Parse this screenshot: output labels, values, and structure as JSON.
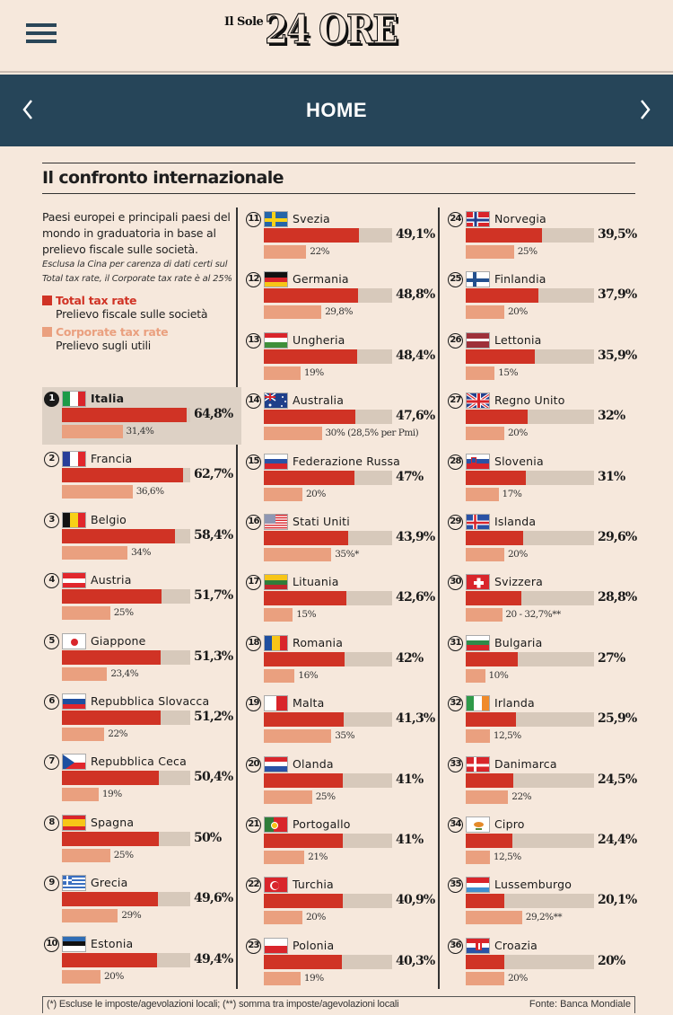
{
  "header": {
    "logo_small": "Il Sole",
    "logo_big": "24 ORE",
    "menu_icon": "hamburger-menu-icon"
  },
  "navbar": {
    "title": "HOME",
    "prev_icon": "chevron-left-icon",
    "next_icon": "chevron-right-icon"
  },
  "colors": {
    "total": "#d03325",
    "corporate": "#eaa07f",
    "track": "#d7c9bb",
    "navbar": "#264559",
    "background": "#f6e8dc"
  },
  "intro": {
    "lead": "Paesi europei e principali paesi del mondo in graduatoria in base al prelievo fiscale sulle società.",
    "note": "Esclusa la Cina per carenza di dati certi sul Total tax rate, il Corporate tax rate è al 25%"
  },
  "legend": {
    "total_label": "Total tax rate",
    "total_sub": "Prelievo fiscale sulle società",
    "corporate_label": "Corporate tax rate",
    "corporate_sub": "Prelievo sugli utili"
  },
  "footer": {
    "note": "(*) Escluse le imposte/agevolazioni locali; (**) somma tra imposte/agevolazioni locali",
    "source": "Fonte: Banca Mondiale"
  },
  "chart_data": {
    "type": "bar",
    "title": "Il confronto internazionale",
    "xlabel": "",
    "ylabel": "",
    "xlim": [
      0,
      66.5
    ],
    "legend": "left",
    "grid": false,
    "series_names": [
      "Total tax rate",
      "Corporate tax rate"
    ],
    "rows": [
      {
        "rank": "1",
        "country": "Italia",
        "flag": "it",
        "total": 64.8,
        "total_label": "64,8%",
        "corp": 31.4,
        "corp_label": "31,4%",
        "highlight": true
      },
      {
        "rank": "2",
        "country": "Francia",
        "flag": "fr",
        "total": 62.7,
        "total_label": "62,7%",
        "corp": 36.6,
        "corp_label": "36,6%"
      },
      {
        "rank": "3",
        "country": "Belgio",
        "flag": "be",
        "total": 58.4,
        "total_label": "58,4%",
        "corp": 34,
        "corp_label": "34%"
      },
      {
        "rank": "4",
        "country": "Austria",
        "flag": "at",
        "total": 51.7,
        "total_label": "51,7%",
        "corp": 25,
        "corp_label": "25%"
      },
      {
        "rank": "5",
        "country": "Giappone",
        "flag": "jp",
        "total": 51.3,
        "total_label": "51,3%",
        "corp": 23.4,
        "corp_label": "23,4%"
      },
      {
        "rank": "6",
        "country": "Repubblica Slovacca",
        "flag": "sk",
        "total": 51.2,
        "total_label": "51,2%",
        "corp": 22,
        "corp_label": "22%"
      },
      {
        "rank": "7",
        "country": "Repubblica Ceca",
        "flag": "cz",
        "total": 50.4,
        "total_label": "50,4%",
        "corp": 19,
        "corp_label": "19%"
      },
      {
        "rank": "8",
        "country": "Spagna",
        "flag": "es",
        "total": 50,
        "total_label": "50%",
        "corp": 25,
        "corp_label": "25%"
      },
      {
        "rank": "9",
        "country": "Grecia",
        "flag": "gr",
        "total": 49.6,
        "total_label": "49,6%",
        "corp": 29,
        "corp_label": "29%"
      },
      {
        "rank": "10",
        "country": "Estonia",
        "flag": "ee",
        "total": 49.4,
        "total_label": "49,4%",
        "corp": 20,
        "corp_label": "20%"
      },
      {
        "rank": "11",
        "country": "Svezia",
        "flag": "se",
        "total": 49.1,
        "total_label": "49,1%",
        "corp": 22,
        "corp_label": "22%"
      },
      {
        "rank": "12",
        "country": "Germania",
        "flag": "de",
        "total": 48.8,
        "total_label": "48,8%",
        "corp": 29.8,
        "corp_label": "29,8%"
      },
      {
        "rank": "13",
        "country": "Ungheria",
        "flag": "hu",
        "total": 48.4,
        "total_label": "48,4%",
        "corp": 19,
        "corp_label": "19%"
      },
      {
        "rank": "14",
        "country": "Australia",
        "flag": "au",
        "total": 47.6,
        "total_label": "47,6%",
        "corp": 30,
        "corp_label": "30% (28,5% per Pmi)"
      },
      {
        "rank": "15",
        "country": "Federazione Russa",
        "flag": "ru",
        "total": 47,
        "total_label": "47%",
        "corp": 20,
        "corp_label": "20%"
      },
      {
        "rank": "16",
        "country": "Stati Uniti",
        "flag": "us",
        "total": 43.9,
        "total_label": "43,9%",
        "corp": 35,
        "corp_label": "35%*"
      },
      {
        "rank": "17",
        "country": "Lituania",
        "flag": "lt",
        "total": 42.6,
        "total_label": "42,6%",
        "corp": 15,
        "corp_label": "15%"
      },
      {
        "rank": "18",
        "country": "Romania",
        "flag": "ro",
        "total": 42,
        "total_label": "42%",
        "corp": 16,
        "corp_label": "16%"
      },
      {
        "rank": "19",
        "country": "Malta",
        "flag": "mt",
        "total": 41.3,
        "total_label": "41,3%",
        "corp": 35,
        "corp_label": "35%"
      },
      {
        "rank": "20",
        "country": "Olanda",
        "flag": "nl",
        "total": 41,
        "total_label": "41%",
        "corp": 25,
        "corp_label": "25%"
      },
      {
        "rank": "21",
        "country": "Portogallo",
        "flag": "pt",
        "total": 41,
        "total_label": "41%",
        "corp": 21,
        "corp_label": "21%"
      },
      {
        "rank": "22",
        "country": "Turchia",
        "flag": "tr",
        "total": 40.9,
        "total_label": "40,9%",
        "corp": 20,
        "corp_label": "20%"
      },
      {
        "rank": "23",
        "country": "Polonia",
        "flag": "pl",
        "total": 40.3,
        "total_label": "40,3%",
        "corp": 19,
        "corp_label": "19%"
      },
      {
        "rank": "24",
        "country": "Norvegia",
        "flag": "no",
        "total": 39.5,
        "total_label": "39,5%",
        "corp": 25,
        "corp_label": "25%"
      },
      {
        "rank": "25",
        "country": "Finlandia",
        "flag": "fi",
        "total": 37.9,
        "total_label": "37,9%",
        "corp": 20,
        "corp_label": "20%"
      },
      {
        "rank": "26",
        "country": "Lettonia",
        "flag": "lv",
        "total": 35.9,
        "total_label": "35,9%",
        "corp": 15,
        "corp_label": "15%"
      },
      {
        "rank": "27",
        "country": "Regno Unito",
        "flag": "gb",
        "total": 32,
        "total_label": "32%",
        "corp": 20,
        "corp_label": "20%"
      },
      {
        "rank": "28",
        "country": "Slovenia",
        "flag": "si",
        "total": 31,
        "total_label": "31%",
        "corp": 17,
        "corp_label": "17%"
      },
      {
        "rank": "29",
        "country": "Islanda",
        "flag": "is",
        "total": 29.6,
        "total_label": "29,6%",
        "corp": 20,
        "corp_label": "20%"
      },
      {
        "rank": "30",
        "country": "Svizzera",
        "flag": "ch",
        "total": 28.8,
        "total_label": "28,8%",
        "corp": 32.7,
        "corp_split": 20,
        "corp_label": "20 - 32,7%**"
      },
      {
        "rank": "31",
        "country": "Bulgaria",
        "flag": "bg",
        "total": 27,
        "total_label": "27%",
        "corp": 10,
        "corp_label": "10%"
      },
      {
        "rank": "32",
        "country": "Irlanda",
        "flag": "ie",
        "total": 25.9,
        "total_label": "25,9%",
        "corp": 12.5,
        "corp_label": "12,5%"
      },
      {
        "rank": "33",
        "country": "Danimarca",
        "flag": "dk",
        "total": 24.5,
        "total_label": "24,5%",
        "corp": 22,
        "corp_label": "22%"
      },
      {
        "rank": "34",
        "country": "Cipro",
        "flag": "cy",
        "total": 24.4,
        "total_label": "24,4%",
        "corp": 12.5,
        "corp_label": "12,5%"
      },
      {
        "rank": "35",
        "country": "Lussemburgo",
        "flag": "lu",
        "total": 20.1,
        "total_label": "20,1%",
        "corp": 29.2,
        "corp_label": "29,2%**"
      },
      {
        "rank": "36",
        "country": "Croazia",
        "flag": "hr",
        "total": 20,
        "total_label": "20%",
        "corp": 20,
        "corp_label": "20%"
      }
    ]
  }
}
